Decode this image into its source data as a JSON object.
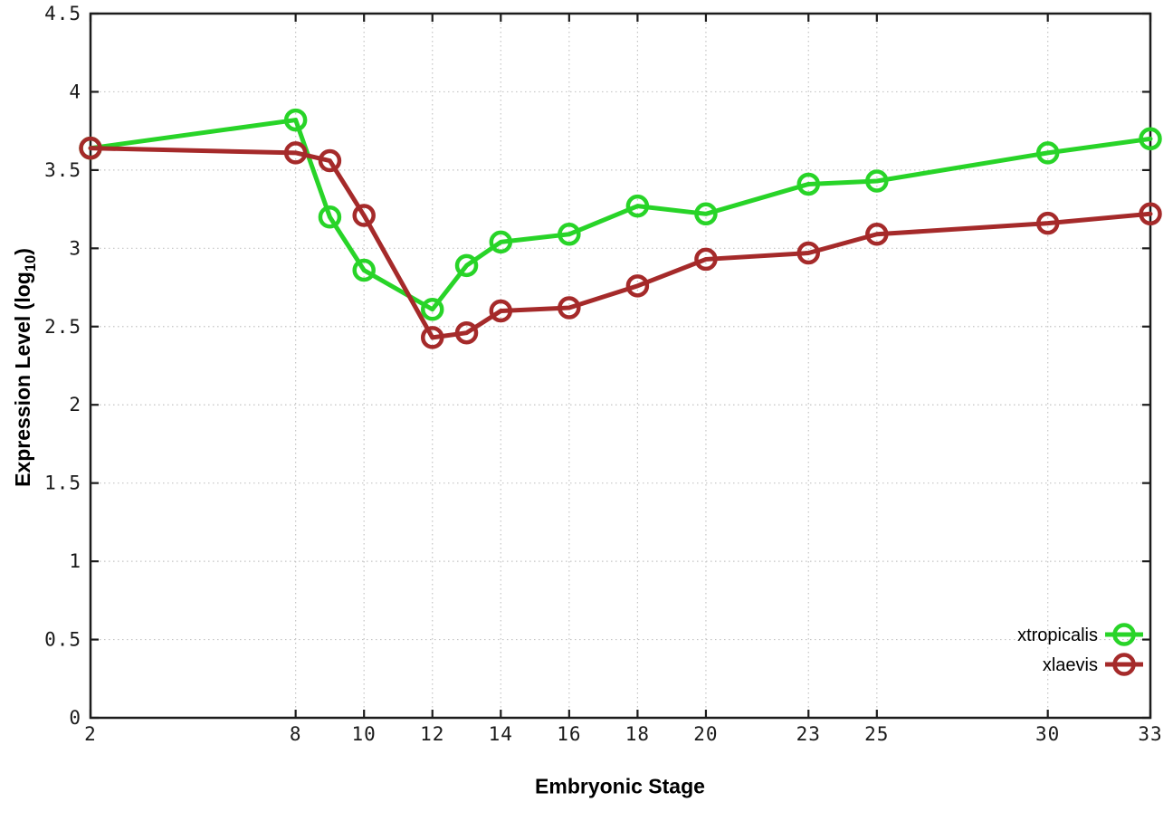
{
  "page": {
    "background": "#ffffff"
  },
  "labels": {
    "xlabel": "Embryonic Stage",
    "ylabel_main": "Expression Level (log",
    "ylabel_sub": "10",
    "ylabel_end": ")"
  },
  "chart_data": {
    "type": "line",
    "title": "",
    "xlabel": "Embryonic Stage",
    "ylabel": "Expression Level (log10)",
    "xlim": [
      2,
      33
    ],
    "ylim": [
      0,
      4.5
    ],
    "x_ticks": [
      2,
      8,
      10,
      12,
      14,
      16,
      18,
      20,
      23,
      25,
      30,
      33
    ],
    "y_ticks": [
      0,
      0.5,
      1,
      1.5,
      2,
      2.5,
      3,
      3.5,
      4,
      4.5
    ],
    "grid": true,
    "legend_position": "bottom-right",
    "x": [
      2,
      8,
      9,
      10,
      12,
      13,
      14,
      16,
      18,
      20,
      23,
      25,
      30,
      33
    ],
    "series": [
      {
        "name": "xtropicalis",
        "color": "#28d428",
        "values": [
          3.64,
          3.82,
          3.2,
          2.86,
          2.61,
          2.89,
          3.04,
          3.09,
          3.27,
          3.22,
          3.41,
          3.43,
          3.61,
          3.7
        ]
      },
      {
        "name": "xlaevis",
        "color": "#a52a2a",
        "values": [
          3.64,
          3.61,
          3.56,
          3.21,
          2.43,
          2.46,
          2.6,
          2.62,
          2.76,
          2.93,
          2.97,
          3.09,
          3.16,
          3.22
        ]
      }
    ],
    "styles": {
      "grid_color": "#c4c4c4",
      "border_color": "#1c1c1c",
      "tick_label_color": "#1a1a1a",
      "marker": "open-circle",
      "line_width": 5,
      "marker_radius": 10.5,
      "marker_stroke": 4.5
    }
  }
}
